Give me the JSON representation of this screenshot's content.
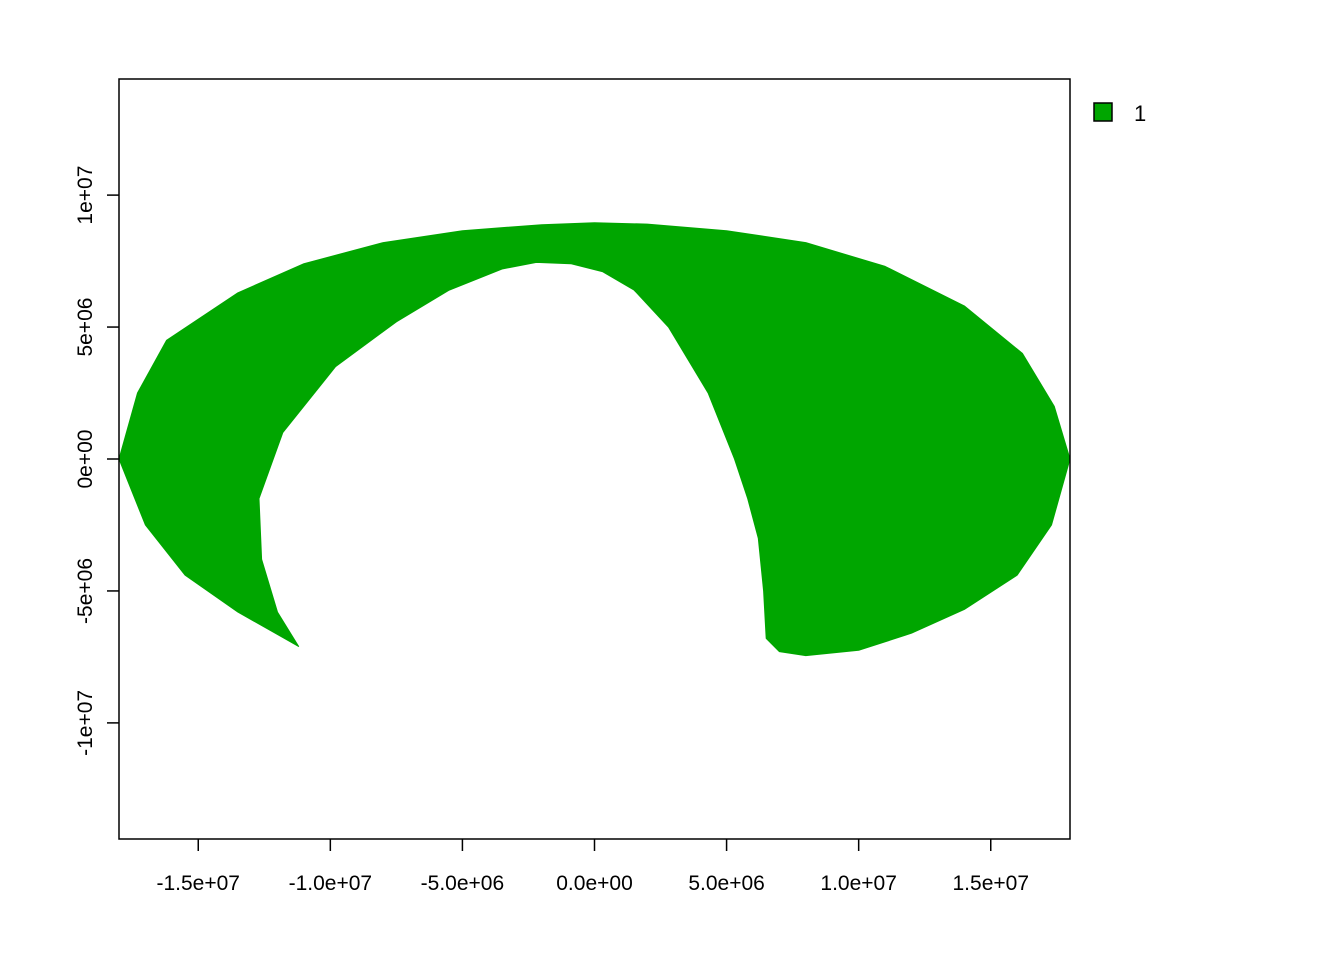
{
  "chart_data": {
    "type": "area",
    "title": "",
    "xlabel": "",
    "ylabel": "",
    "xlim": [
      -18000000,
      18000000
    ],
    "ylim": [
      -14400000,
      14400000
    ],
    "x_ticks": [
      {
        "value": -15000000,
        "label": "-1.5e+07"
      },
      {
        "value": -10000000,
        "label": "-1.0e+07"
      },
      {
        "value": -5000000,
        "label": "-5.0e+06"
      },
      {
        "value": 0,
        "label": "0.0e+00"
      },
      {
        "value": 5000000,
        "label": "5.0e+06"
      },
      {
        "value": 10000000,
        "label": "1.0e+07"
      },
      {
        "value": 15000000,
        "label": "1.5e+07"
      }
    ],
    "y_ticks": [
      {
        "value": -10000000,
        "label": "-1e+07"
      },
      {
        "value": -5000000,
        "label": "-5e+06"
      },
      {
        "value": 0,
        "label": "0e+00"
      },
      {
        "value": 5000000,
        "label": "5e+06"
      },
      {
        "value": 10000000,
        "label": "1e+07"
      }
    ],
    "grid": false,
    "legend_position": "top-right, outside plot",
    "fill_color": "#00A600",
    "series": [
      {
        "name": "1",
        "color": "#00A600",
        "outline": [
          [
            -11200000,
            -7100000
          ],
          [
            -13500000,
            -5800000
          ],
          [
            -15500000,
            -4400000
          ],
          [
            -17000000,
            -2500000
          ],
          [
            -18000000,
            0
          ],
          [
            -17300000,
            2500000
          ],
          [
            -16200000,
            4500000
          ],
          [
            -13500000,
            6300000
          ],
          [
            -11000000,
            7400000
          ],
          [
            -8000000,
            8200000
          ],
          [
            -5000000,
            8650000
          ],
          [
            -2000000,
            8880000
          ],
          [
            0,
            8950000
          ],
          [
            2000000,
            8900000
          ],
          [
            5000000,
            8650000
          ],
          [
            8000000,
            8200000
          ],
          [
            11000000,
            7300000
          ],
          [
            14000000,
            5800000
          ],
          [
            16200000,
            4000000
          ],
          [
            17400000,
            2000000
          ],
          [
            18000000,
            0
          ],
          [
            17300000,
            -2500000
          ],
          [
            16000000,
            -4400000
          ],
          [
            14000000,
            -5700000
          ],
          [
            12000000,
            -6600000
          ],
          [
            10000000,
            -7250000
          ],
          [
            8000000,
            -7450000
          ],
          [
            7000000,
            -7300000
          ],
          [
            6500000,
            -6800000
          ],
          [
            6400000,
            -5000000
          ],
          [
            6200000,
            -3000000
          ],
          [
            5800000,
            -1500000
          ],
          [
            5300000,
            0
          ],
          [
            4300000,
            2500000
          ],
          [
            2800000,
            5000000
          ],
          [
            1500000,
            6400000
          ],
          [
            300000,
            7100000
          ],
          [
            -900000,
            7400000
          ],
          [
            -2200000,
            7450000
          ],
          [
            -3500000,
            7200000
          ],
          [
            -5500000,
            6400000
          ],
          [
            -7500000,
            5200000
          ],
          [
            -9800000,
            3500000
          ],
          [
            -11800000,
            1000000
          ],
          [
            -12700000,
            -1500000
          ],
          [
            -12600000,
            -3800000
          ],
          [
            -12000000,
            -5800000
          ],
          [
            -11200000,
            -7100000
          ]
        ]
      }
    ]
  }
}
